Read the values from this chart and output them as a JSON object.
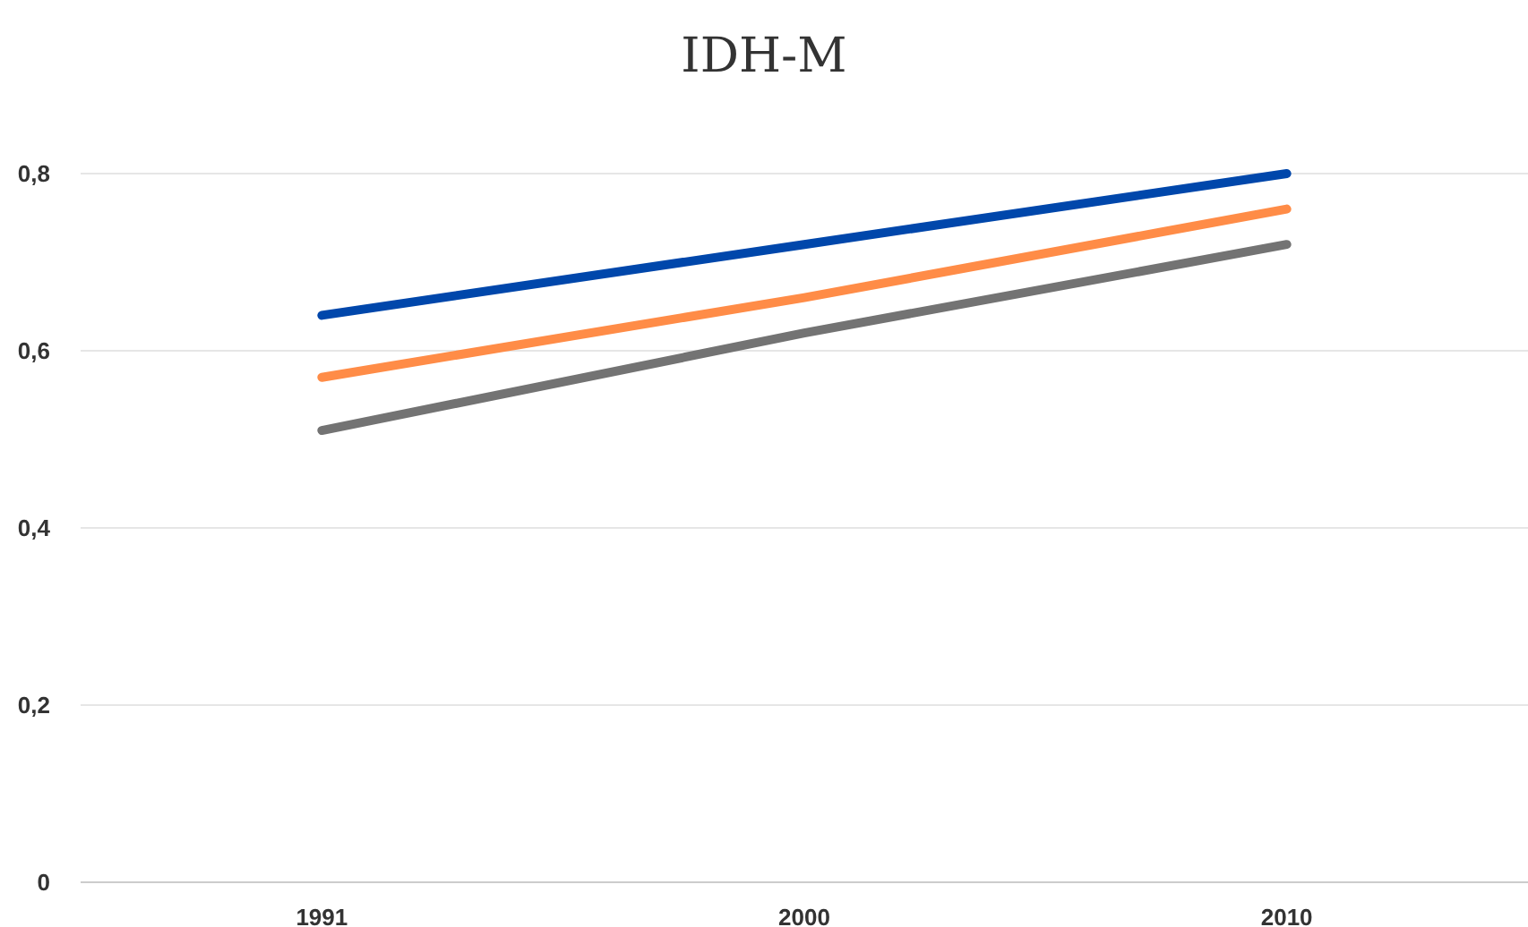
{
  "chart_data": {
    "type": "line",
    "title": "IDH-M",
    "categories": [
      "1991",
      "2000",
      "2010"
    ],
    "series": [
      {
        "color": "#0047ab",
        "values": [
          0.64,
          0.72,
          0.8
        ]
      },
      {
        "color": "#ff8c47",
        "values": [
          0.57,
          0.66,
          0.76
        ]
      },
      {
        "color": "#737373",
        "values": [
          0.51,
          0.62,
          0.72
        ]
      }
    ],
    "ylim": [
      0,
      0.8
    ],
    "yticks": [
      {
        "value": 0,
        "label": "0"
      },
      {
        "value": 0.2,
        "label": "0,2"
      },
      {
        "value": 0.4,
        "label": "0,4"
      },
      {
        "value": 0.6,
        "label": "0,6"
      },
      {
        "value": 0.8,
        "label": "0,8"
      }
    ],
    "grid": "y",
    "marker": "none",
    "line_style": "solid"
  }
}
